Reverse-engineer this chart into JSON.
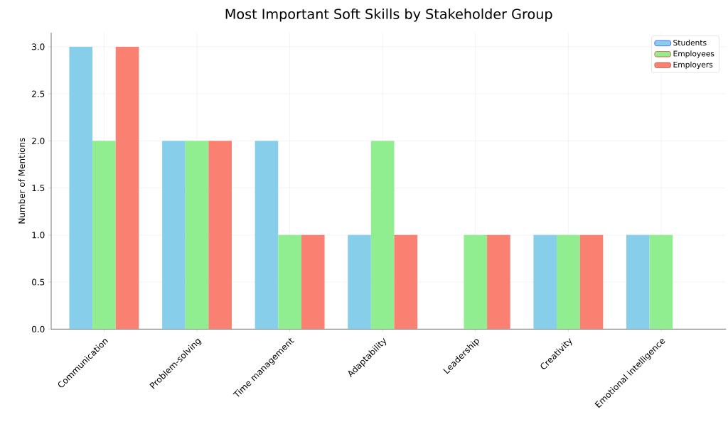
{
  "chart_data": {
    "type": "bar",
    "title": "Most Important Soft Skills by Stakeholder Group",
    "ylabel": "Number of Mentions",
    "categories": [
      "Communication",
      "Problem-solving",
      "Time management",
      "Adaptability",
      "Leadership",
      "Creativity",
      "Emotional intelligence"
    ],
    "series": [
      {
        "name": "Students",
        "color": "#87ceeb",
        "values": [
          3,
          2,
          2,
          1,
          0,
          1,
          1
        ]
      },
      {
        "name": "Employees",
        "color": "#90ee90",
        "values": [
          2,
          2,
          1,
          2,
          1,
          1,
          1
        ]
      },
      {
        "name": "Employers",
        "color": "#fa8072",
        "values": [
          3,
          2,
          1,
          1,
          1,
          1,
          0
        ]
      }
    ],
    "ylim": [
      0,
      3.15
    ],
    "yticks": [
      {
        "value": 0,
        "label": "0.0"
      },
      {
        "value": 0.5,
        "label": "0.5"
      },
      {
        "value": 1,
        "label": "1.0"
      },
      {
        "value": 1.5,
        "label": "1.5"
      },
      {
        "value": 2,
        "label": "2.0"
      },
      {
        "value": 2.5,
        "label": "2.5"
      },
      {
        "value": 3,
        "label": "3.0"
      }
    ],
    "grid": true,
    "legend": "top right"
  }
}
